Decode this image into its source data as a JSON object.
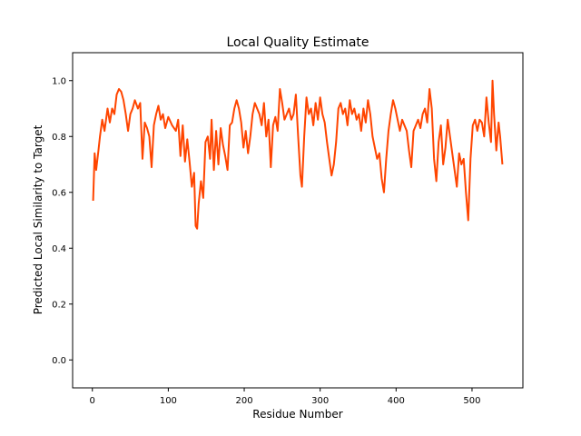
{
  "chart_data": {
    "type": "line",
    "title": "Local Quality Estimate",
    "xlabel": "Residue Number",
    "ylabel": "Predicted Local Similarity to Target",
    "xlim": [
      -26,
      567
    ],
    "ylim": [
      -0.1,
      1.1
    ],
    "xticks": [
      0,
      100,
      200,
      300,
      400,
      500
    ],
    "yticks": [
      {
        "value": 0,
        "label": "0.0"
      },
      0.2,
      0.4,
      0.6,
      0.8,
      {
        "value": 1,
        "label": "1.0"
      }
    ],
    "x": [
      1,
      3,
      5,
      8,
      10,
      13,
      16,
      20,
      23,
      26,
      29,
      32,
      35,
      38,
      41,
      44,
      47,
      50,
      53,
      56,
      60,
      63,
      66,
      69,
      72,
      75,
      78,
      81,
      84,
      87,
      90,
      93,
      96,
      100,
      105,
      110,
      113,
      116,
      119,
      122,
      125,
      128,
      131,
      134,
      136,
      138,
      140,
      143,
      146,
      149,
      152,
      155,
      157,
      160,
      163,
      166,
      169,
      172,
      175,
      178,
      181,
      184,
      187,
      190,
      193,
      196,
      199,
      202,
      205,
      208,
      211,
      214,
      217,
      220,
      223,
      226,
      229,
      232,
      235,
      238,
      241,
      244,
      247,
      250,
      253,
      256,
      259,
      262,
      265,
      268,
      271,
      274,
      276,
      279,
      282,
      285,
      288,
      291,
      294,
      297,
      300,
      303,
      306,
      309,
      312,
      315,
      318,
      321,
      324,
      327,
      330,
      333,
      336,
      339,
      342,
      345,
      348,
      351,
      354,
      357,
      360,
      363,
      366,
      369,
      372,
      375,
      378,
      381,
      384,
      387,
      390,
      393,
      396,
      399,
      402,
      405,
      408,
      411,
      414,
      417,
      420,
      423,
      426,
      429,
      432,
      435,
      438,
      441,
      444,
      447,
      450,
      453,
      456,
      459,
      462,
      465,
      468,
      471,
      474,
      477,
      480,
      483,
      486,
      489,
      492,
      495,
      498,
      501,
      504,
      507,
      510,
      513,
      516,
      519,
      522,
      525,
      527,
      529,
      532,
      535,
      537,
      540
    ],
    "series": [
      {
        "color": "#ff4500",
        "values": [
          0.57,
          0.74,
          0.68,
          0.75,
          0.8,
          0.86,
          0.82,
          0.9,
          0.85,
          0.9,
          0.88,
          0.95,
          0.97,
          0.96,
          0.93,
          0.88,
          0.82,
          0.88,
          0.9,
          0.93,
          0.9,
          0.92,
          0.72,
          0.85,
          0.83,
          0.8,
          0.69,
          0.84,
          0.88,
          0.91,
          0.86,
          0.88,
          0.83,
          0.87,
          0.84,
          0.82,
          0.86,
          0.73,
          0.84,
          0.71,
          0.79,
          0.71,
          0.62,
          0.67,
          0.48,
          0.47,
          0.56,
          0.64,
          0.58,
          0.78,
          0.8,
          0.72,
          0.86,
          0.68,
          0.82,
          0.7,
          0.83,
          0.77,
          0.73,
          0.68,
          0.84,
          0.85,
          0.9,
          0.93,
          0.9,
          0.85,
          0.76,
          0.82,
          0.74,
          0.8,
          0.88,
          0.92,
          0.9,
          0.88,
          0.84,
          0.92,
          0.8,
          0.86,
          0.69,
          0.84,
          0.87,
          0.82,
          0.97,
          0.92,
          0.86,
          0.88,
          0.9,
          0.86,
          0.88,
          0.95,
          0.8,
          0.66,
          0.62,
          0.8,
          0.94,
          0.88,
          0.9,
          0.84,
          0.92,
          0.86,
          0.94,
          0.88,
          0.85,
          0.78,
          0.72,
          0.66,
          0.7,
          0.78,
          0.9,
          0.92,
          0.88,
          0.9,
          0.84,
          0.93,
          0.88,
          0.9,
          0.86,
          0.88,
          0.82,
          0.9,
          0.85,
          0.93,
          0.88,
          0.8,
          0.76,
          0.72,
          0.74,
          0.65,
          0.6,
          0.72,
          0.82,
          0.88,
          0.93,
          0.9,
          0.86,
          0.82,
          0.86,
          0.84,
          0.82,
          0.75,
          0.69,
          0.82,
          0.84,
          0.86,
          0.83,
          0.88,
          0.9,
          0.85,
          0.97,
          0.9,
          0.72,
          0.64,
          0.78,
          0.84,
          0.7,
          0.76,
          0.86,
          0.8,
          0.74,
          0.68,
          0.62,
          0.74,
          0.7,
          0.72,
          0.6,
          0.5,
          0.72,
          0.84,
          0.86,
          0.82,
          0.86,
          0.85,
          0.8,
          0.94,
          0.85,
          0.78,
          1.0,
          0.88,
          0.75,
          0.85,
          0.8,
          0.7
        ]
      }
    ]
  }
}
